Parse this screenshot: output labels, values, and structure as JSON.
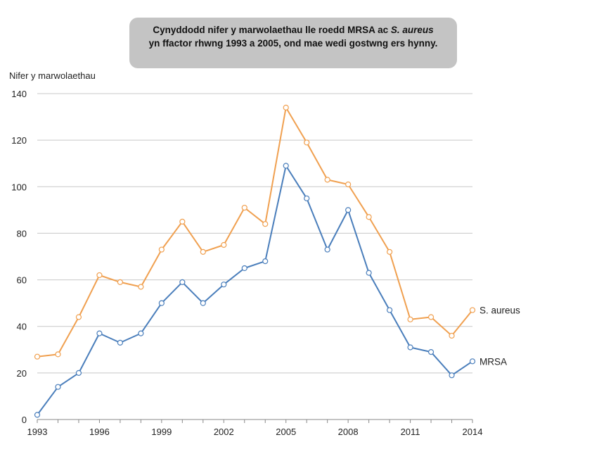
{
  "callout": {
    "line1_prefix": "Cynyddodd nifer y marwolaethau lle roedd MRSA ac ",
    "line1_italic": "S. aureus",
    "line2": "yn ffactor rhwng 1993 a 2005, ond mae wedi gostwng ers hynny."
  },
  "chart_data": {
    "type": "line",
    "ylabel": "Nifer y marwolaethau",
    "xlabel": "",
    "ylim": [
      0,
      140
    ],
    "yticks": [
      0,
      20,
      40,
      60,
      80,
      100,
      120,
      140
    ],
    "xticks": [
      1993,
      1996,
      1999,
      2002,
      2005,
      2008,
      2011,
      2014
    ],
    "x": [
      1993,
      1994,
      1995,
      1996,
      1997,
      1998,
      1999,
      2000,
      2001,
      2002,
      2003,
      2004,
      2005,
      2006,
      2007,
      2008,
      2009,
      2010,
      2011,
      2012,
      2013,
      2014
    ],
    "grid": true,
    "series": [
      {
        "name": "S. aureus",
        "color": "#f0a050",
        "values": [
          27,
          28,
          44,
          62,
          59,
          57,
          73,
          85,
          72,
          75,
          91,
          84,
          134,
          119,
          103,
          101,
          87,
          72,
          43,
          44,
          36,
          47
        ]
      },
      {
        "name": "MRSA",
        "color": "#4a7ebb",
        "values": [
          2,
          14,
          20,
          37,
          33,
          37,
          50,
          59,
          50,
          58,
          65,
          68,
          109,
          95,
          73,
          90,
          63,
          47,
          31,
          29,
          19,
          25
        ]
      }
    ]
  }
}
